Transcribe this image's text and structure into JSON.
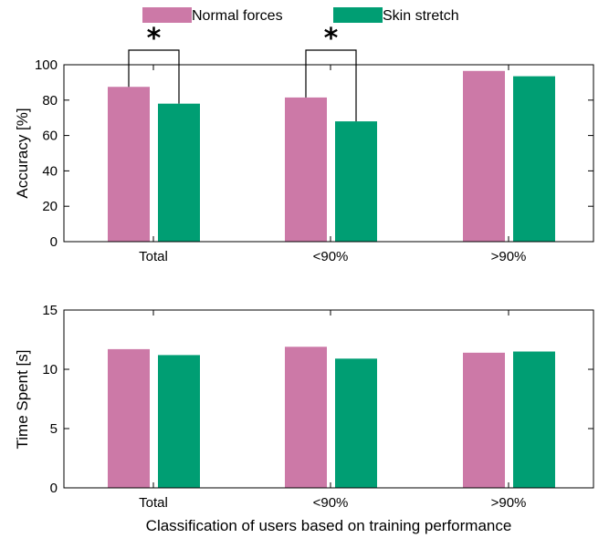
{
  "legend": [
    {
      "label": "Normal forces",
      "color": "#cc79a7"
    },
    {
      "label": "Skin stretch",
      "color": "#009e73"
    }
  ],
  "xlabel": "Classification of users based on training performance",
  "chart_data": [
    {
      "type": "bar",
      "categories": [
        "Total",
        "<90%",
        ">90%"
      ],
      "series": [
        {
          "name": "Normal forces",
          "values": [
            87.5,
            81.5,
            96.5
          ]
        },
        {
          "name": "Skin stretch",
          "values": [
            78,
            68,
            93.5
          ]
        }
      ],
      "ylabel": "Accuracy [%]",
      "ylim": [
        0,
        100
      ],
      "yticks": [
        0,
        20,
        40,
        60,
        80,
        100
      ],
      "significance": [
        {
          "category": "Total",
          "marker": "*"
        },
        {
          "category": "<90%",
          "marker": "*"
        }
      ],
      "grid": false,
      "legend_position": "top"
    },
    {
      "type": "bar",
      "categories": [
        "Total",
        "<90%",
        ">90%"
      ],
      "series": [
        {
          "name": "Normal forces",
          "values": [
            11.7,
            11.9,
            11.4
          ]
        },
        {
          "name": "Skin stretch",
          "values": [
            11.2,
            10.9,
            11.5
          ]
        }
      ],
      "ylabel": "Time Spent [s]",
      "ylim": [
        0,
        15
      ],
      "yticks": [
        0,
        5,
        10,
        15
      ],
      "grid": false
    }
  ]
}
